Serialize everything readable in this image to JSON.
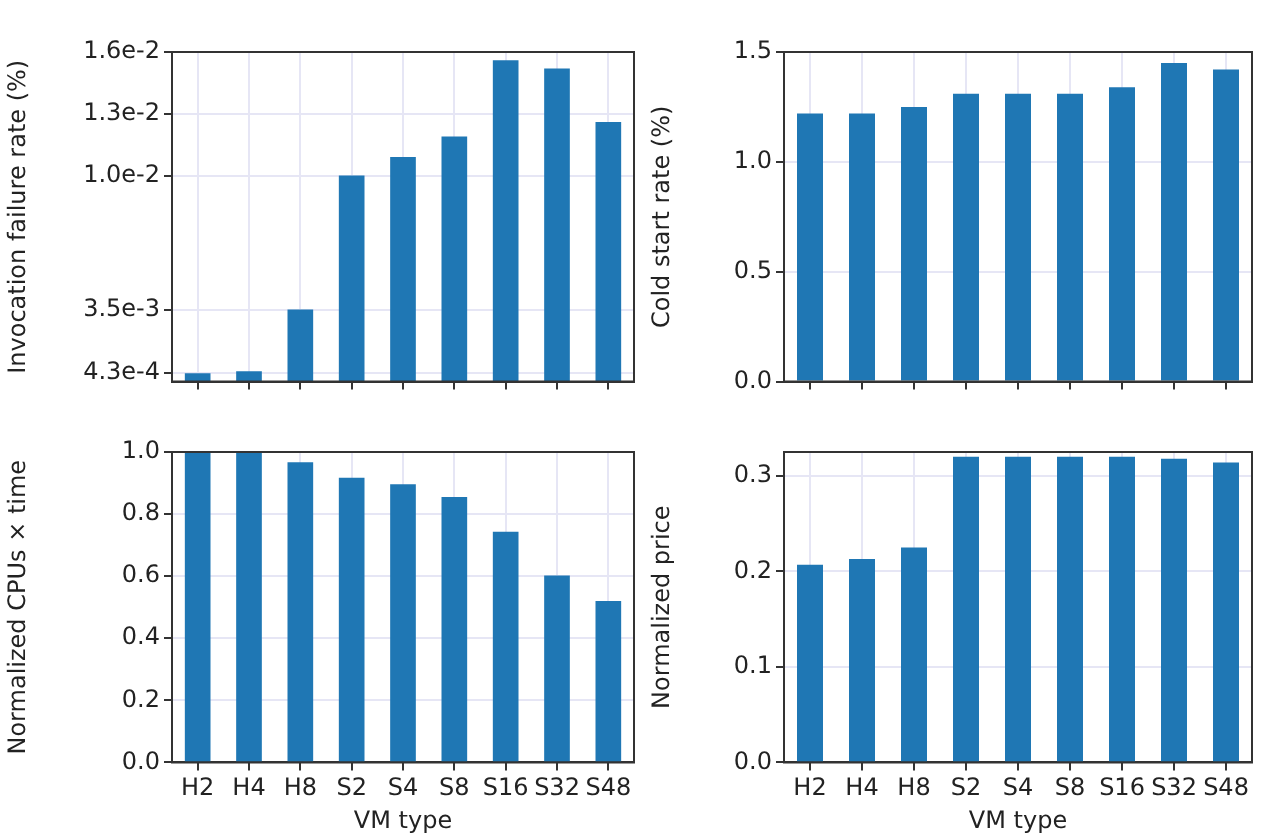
{
  "chart_data": [
    {
      "type": "bar",
      "ylabel": "Invocation failure rate (%)",
      "categories": [
        null,
        null,
        null,
        null,
        null,
        null,
        null,
        null,
        null
      ],
      "values": [
        0.0004,
        0.0005,
        0.0035,
        0.01,
        0.0109,
        0.0119,
        0.0156,
        0.0152,
        0.0126
      ],
      "color": "#1f77b4",
      "ylim": [
        0,
        0.016
      ],
      "yticks": [
        {
          "value": 0.00043,
          "label": "4.3e-4"
        },
        {
          "value": 0.0035,
          "label": "3.5e-3"
        },
        {
          "value": 0.01,
          "label": "1.0e-2"
        },
        {
          "value": 0.013,
          "label": "1.3e-2"
        },
        {
          "value": 0.016,
          "label": "1.6e-2"
        }
      ],
      "grid": true,
      "tick_labels": "y"
    },
    {
      "type": "bar",
      "ylabel": "Cold start rate (%)",
      "categories": [
        null,
        null,
        null,
        null,
        null,
        null,
        null,
        null,
        null
      ],
      "values": [
        1.22,
        1.22,
        1.25,
        1.31,
        1.31,
        1.31,
        1.34,
        1.45,
        1.42
      ],
      "color": "#1f77b4",
      "ylim": [
        0,
        1.5
      ],
      "yticks": [
        {
          "value": 0,
          "label": "0.0"
        },
        {
          "value": 0.5,
          "label": "0.5"
        },
        {
          "value": 1,
          "label": "1.0"
        },
        {
          "value": 1.5,
          "label": "1.5"
        }
      ],
      "grid": true,
      "tick_labels": "y"
    },
    {
      "type": "bar",
      "xlabel": "VM type",
      "ylabel": "Normalized CPUs × time",
      "categories": [
        "H2",
        "H4",
        "H8",
        "S2",
        "S4",
        "S8",
        "S16",
        "S32",
        "S48"
      ],
      "values": [
        1.0,
        1.0,
        0.967,
        0.917,
        0.896,
        0.855,
        0.743,
        0.602,
        0.52
      ],
      "color": "#1f77b4",
      "ylim": [
        0,
        1.0
      ],
      "yticks": [
        {
          "value": 0,
          "label": "0.0"
        },
        {
          "value": 0.2,
          "label": "0.2"
        },
        {
          "value": 0.4,
          "label": "0.4"
        },
        {
          "value": 0.6,
          "label": "0.6"
        },
        {
          "value": 0.8,
          "label": "0.8"
        },
        {
          "value": 1,
          "label": "1.0"
        }
      ],
      "grid": true
    },
    {
      "type": "bar",
      "xlabel": "VM type",
      "ylabel": "Normalized price",
      "categories": [
        "H2",
        "H4",
        "H8",
        "S2",
        "S4",
        "S8",
        "S16",
        "S32",
        "S48"
      ],
      "values": [
        0.207,
        0.213,
        0.225,
        0.32,
        0.32,
        0.32,
        0.32,
        0.318,
        0.314
      ],
      "color": "#1f77b4",
      "ylim": [
        0,
        0.325
      ],
      "yticks": [
        {
          "value": 0,
          "label": "0.0"
        },
        {
          "value": 0.1,
          "label": "0.1"
        },
        {
          "value": 0.2,
          "label": "0.2"
        },
        {
          "value": 0.3,
          "label": "0.3"
        }
      ],
      "grid": true
    }
  ]
}
